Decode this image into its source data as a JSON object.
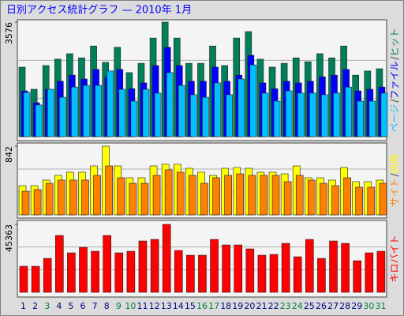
{
  "title": "日別アクセス統計グラフ — 2010年 1月",
  "chart_data": [
    {
      "type": "bar",
      "ylim": [
        0,
        3576
      ],
      "yticks": [
        3576
      ],
      "legend_separator": "/",
      "series": [
        {
          "name": "ヒット",
          "color": "#00805a",
          "values": [
            2170,
            1480,
            2220,
            2420,
            2590,
            2460,
            2830,
            2320,
            2790,
            2000,
            2290,
            3080,
            3576,
            3080,
            2290,
            2290,
            2830,
            2220,
            3080,
            3280,
            2420,
            2170,
            2290,
            2460,
            2340,
            2590,
            2460,
            2830,
            1920,
            2050,
            2120
          ]
        },
        {
          "name": "ファイル",
          "color": "#0000ff",
          "values": [
            1430,
            1060,
            1480,
            1730,
            1920,
            1800,
            2100,
            1850,
            2100,
            1500,
            1680,
            2220,
            2790,
            2220,
            1730,
            1730,
            2170,
            1730,
            1920,
            2540,
            1680,
            1500,
            1730,
            1680,
            1730,
            1870,
            1920,
            2100,
            1430,
            1480,
            1550
          ]
        },
        {
          "name": "ページ",
          "color": "#00c0ff",
          "values": [
            1380,
            990,
            1480,
            1230,
            1550,
            1600,
            1600,
            2050,
            1480,
            1110,
            1480,
            1360,
            2000,
            1600,
            1310,
            1230,
            1680,
            1310,
            1800,
            2240,
            1360,
            1110,
            1430,
            1360,
            1360,
            1310,
            1360,
            1550,
            1110,
            1110,
            1360
          ]
        }
      ]
    },
    {
      "type": "bar",
      "ylim": [
        0,
        842
      ],
      "yticks": [
        842
      ],
      "legend_separator": "/",
      "series": [
        {
          "name": "訪問",
          "color": "#ffff00",
          "values": [
            358,
            358,
            426,
            484,
            523,
            523,
            600,
            842,
            600,
            455,
            455,
            600,
            620,
            620,
            571,
            523,
            484,
            571,
            581,
            571,
            523,
            523,
            503,
            600,
            455,
            455,
            426,
            581,
            407,
            407,
            426
          ]
        },
        {
          "name": "サイト",
          "color": "#ff8000",
          "values": [
            290,
            310,
            387,
            426,
            426,
            426,
            484,
            600,
            455,
            387,
            387,
            484,
            552,
            523,
            484,
            387,
            455,
            484,
            503,
            484,
            484,
            484,
            407,
            484,
            426,
            387,
            358,
            455,
            339,
            339,
            387
          ]
        }
      ]
    },
    {
      "type": "bar",
      "ylim": [
        0,
        45363
      ],
      "yticks": [
        45363
      ],
      "categories": [
        "1",
        "2",
        "3",
        "4",
        "5",
        "6",
        "7",
        "8",
        "9",
        "10",
        "11",
        "12",
        "13",
        "14",
        "15",
        "16",
        "17",
        "18",
        "19",
        "20",
        "21",
        "22",
        "23",
        "24",
        "25",
        "26",
        "27",
        "28",
        "29",
        "30",
        "31"
      ],
      "category_colors": [
        "#000080",
        "#000080",
        "#008040",
        "#000080",
        "#000080",
        "#000080",
        "#000080",
        "#000080",
        "#008040",
        "#008040",
        "#000080",
        "#000080",
        "#000080",
        "#000080",
        "#000080",
        "#008040",
        "#008040",
        "#000080",
        "#000080",
        "#000080",
        "#000080",
        "#000080",
        "#008040",
        "#008040",
        "#000080",
        "#000080",
        "#000080",
        "#000080",
        "#000080",
        "#008040",
        "#008040"
      ],
      "series": [
        {
          "name": "キロバイト",
          "color": "#ff0000",
          "values": [
            17390,
            17390,
            22660,
            37940,
            26350,
            30040,
            27400,
            37940,
            26350,
            27400,
            34260,
            35310,
            45363,
            27930,
            24770,
            24770,
            35310,
            31620,
            31620,
            28990,
            24770,
            25290,
            32670,
            23720,
            35310,
            22660,
            34260,
            32670,
            21080,
            26350,
            27400
          ]
        }
      ]
    }
  ]
}
